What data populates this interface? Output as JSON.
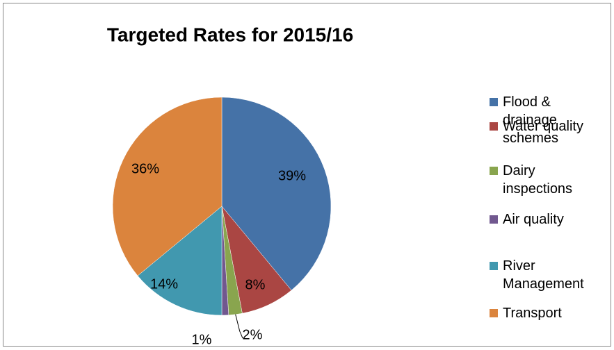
{
  "chart_data": {
    "type": "pie",
    "title": "Targeted Rates for 2015/16",
    "categories": [
      "Flood & drainage schemes",
      "Water quality",
      "Dairy inspections",
      "Air quality",
      "River Management",
      "Transport"
    ],
    "values": [
      39,
      8,
      2,
      1,
      14,
      36
    ],
    "value_labels": [
      "39%",
      "8%",
      "2%",
      "1%",
      "14%",
      "36%"
    ],
    "colors": [
      "#4572A7",
      "#AA4643",
      "#89A54E",
      "#71588F",
      "#4198AF",
      "#DB843D"
    ],
    "legend": "right"
  }
}
